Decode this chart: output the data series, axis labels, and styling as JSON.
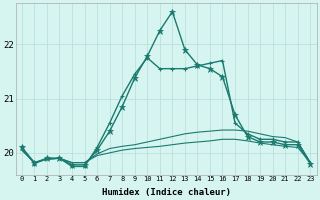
{
  "xlabel": "Humidex (Indice chaleur)",
  "x": [
    0,
    1,
    2,
    3,
    4,
    5,
    6,
    7,
    8,
    9,
    10,
    11,
    12,
    13,
    14,
    15,
    16,
    17,
    18,
    19,
    20,
    21,
    22,
    23
  ],
  "series_main": [
    20.1,
    19.8,
    19.9,
    19.9,
    19.75,
    19.75,
    20.1,
    20.55,
    21.05,
    21.45,
    21.75,
    21.55,
    21.55,
    21.55,
    21.6,
    21.65,
    21.7,
    20.55,
    20.35,
    20.25,
    20.25,
    20.2,
    20.2,
    19.82
  ],
  "series_peak": [
    20.1,
    19.82,
    19.9,
    19.9,
    19.78,
    19.78,
    20.05,
    20.4,
    20.85,
    21.38,
    21.78,
    22.25,
    22.6,
    21.9,
    21.62,
    21.55,
    21.4,
    20.7,
    20.3,
    20.2,
    20.2,
    20.15,
    20.15,
    19.8
  ],
  "series_flat1": [
    20.05,
    19.82,
    19.88,
    19.9,
    19.82,
    19.82,
    19.98,
    20.08,
    20.12,
    20.15,
    20.2,
    20.25,
    20.3,
    20.35,
    20.38,
    20.4,
    20.42,
    20.42,
    20.4,
    20.35,
    20.3,
    20.28,
    20.2,
    19.82
  ],
  "series_flat2": [
    20.05,
    19.82,
    19.88,
    19.9,
    19.82,
    19.82,
    19.95,
    20.0,
    20.05,
    20.08,
    20.1,
    20.12,
    20.15,
    20.18,
    20.2,
    20.22,
    20.25,
    20.25,
    20.22,
    20.18,
    20.15,
    20.12,
    20.1,
    19.82
  ],
  "line_color": "#1a7a6e",
  "bg_color": "#d6f5f0",
  "grid_color": "#b8dcd8",
  "ylim": [
    19.6,
    22.75
  ],
  "yticks": [
    20,
    21,
    22
  ],
  "xlim": [
    -0.5,
    23.5
  ],
  "figsize": [
    3.2,
    2.0
  ],
  "dpi": 100
}
